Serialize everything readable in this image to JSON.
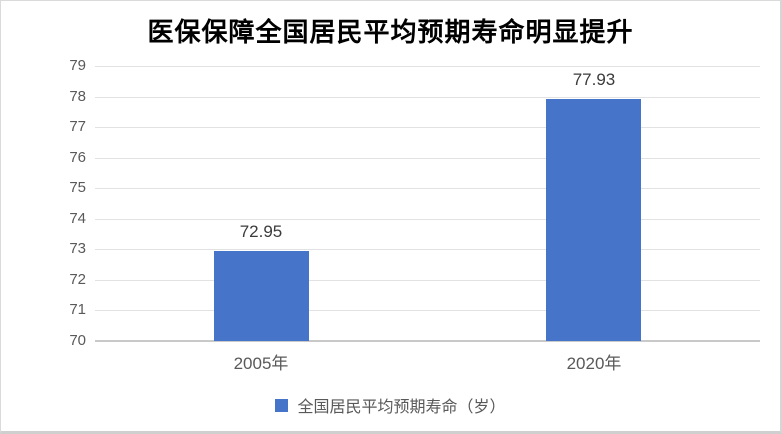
{
  "title": "医保保障全国居民平均预期寿命明显提升",
  "legend": {
    "label": "全国居民平均预期寿命（岁）"
  },
  "colors": {
    "bar": "#4674c9",
    "gridline": "#e2e2e2",
    "axis_line": "#c9c9c9",
    "tick_text": "#595959",
    "data_label_text": "#3b3b3b",
    "title_text": "#000000",
    "background": "#ffffff"
  },
  "chart_data": {
    "type": "bar",
    "title": "医保保障全国居民平均预期寿命明显提升",
    "categories": [
      "2005年",
      "2020年"
    ],
    "values": [
      72.95,
      77.93
    ],
    "data_labels": [
      "72.95",
      "77.93"
    ],
    "xlabel": "",
    "ylabel": "",
    "ylim": [
      70,
      79
    ],
    "ytick_step": 1,
    "yticks": [
      70,
      71,
      72,
      73,
      74,
      75,
      76,
      77,
      78,
      79
    ],
    "grid": true,
    "legend_entries": [
      "全国居民平均预期寿命（岁）"
    ],
    "legend_position": "bottom",
    "series_color": "#4674c9"
  }
}
